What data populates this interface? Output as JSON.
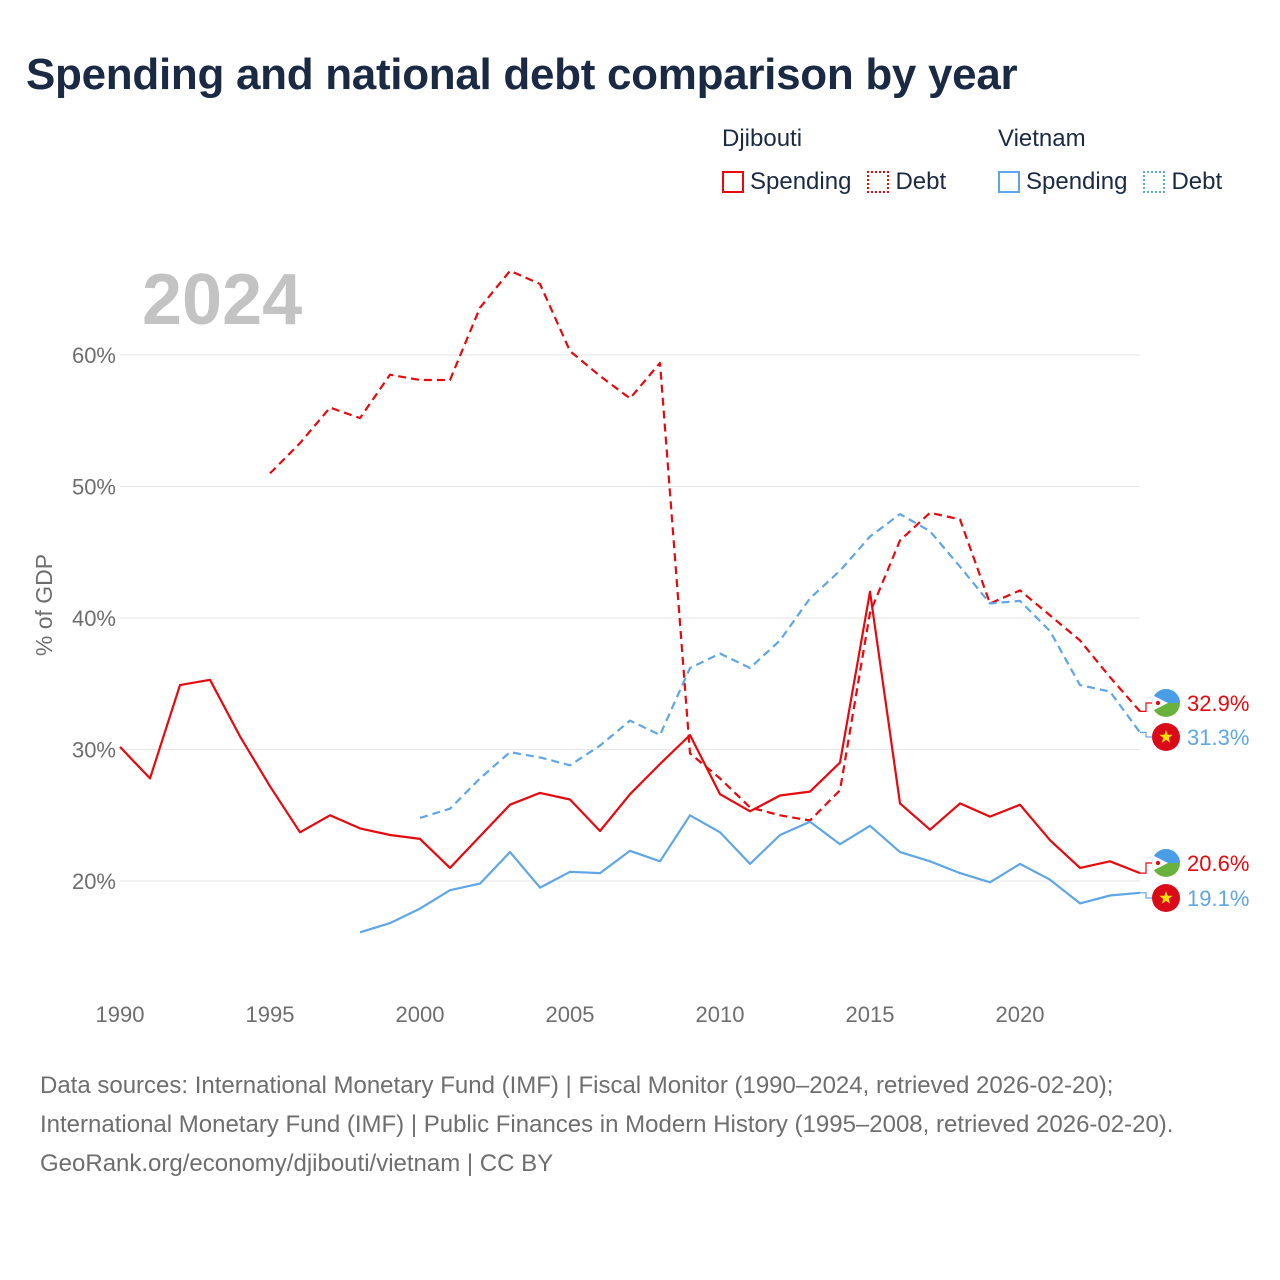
{
  "title": "Spending and national debt comparison by year",
  "legend": {
    "groups": [
      {
        "name": "Djibouti",
        "items": [
          {
            "label": "Spending"
          },
          {
            "label": "Debt"
          }
        ]
      },
      {
        "name": "Vietnam",
        "items": [
          {
            "label": "Spending"
          },
          {
            "label": "Debt"
          }
        ]
      }
    ]
  },
  "colors": {
    "djibouti": "#e8080d",
    "vietnam": "#5fa6e6",
    "grid": "#e6e6e6",
    "axis_text": "#6e6e6e",
    "year_label": "#c3c3c3"
  },
  "footer": {
    "sources": "Data sources: International Monetary Fund (IMF) | Fiscal Monitor (1990–2024, retrieved 2026-02-20); International Monetary Fund (IMF) | Public Finances in Modern History (1995–2008, retrieved 2026-02-20).",
    "credit": "GeoRank.org/economy/djibouti/vietnam | CC BY"
  },
  "chart_data": {
    "type": "line",
    "year_label": "2024",
    "ylabel": "% of GDP",
    "xlim": [
      1990,
      2024
    ],
    "ylim": [
      13,
      68
    ],
    "x_ticks": [
      1990,
      1995,
      2000,
      2005,
      2010,
      2015,
      2020
    ],
    "x_tick_labels": [
      "1990",
      "1995",
      "2000",
      "2005",
      "2010",
      "2015",
      "2020"
    ],
    "y_ticks": [
      20,
      30,
      40,
      50,
      60
    ],
    "y_tick_labels": [
      "20%",
      "30%",
      "40%",
      "50%",
      "60%"
    ],
    "grid": true,
    "series": [
      {
        "name": "Djibouti Spending",
        "country": "djibouti",
        "style": "solid",
        "x": [
          1990,
          1991,
          1992,
          1993,
          1994,
          1995,
          1996,
          1997,
          1998,
          1999,
          2000,
          2001,
          2002,
          2003,
          2004,
          2005,
          2006,
          2007,
          2008,
          2009,
          2010,
          2011,
          2012,
          2013,
          2014,
          2015,
          2016,
          2017,
          2018,
          2019,
          2020,
          2021,
          2022,
          2023,
          2024
        ],
        "values": [
          30.2,
          27.8,
          34.9,
          35.3,
          31.0,
          27.2,
          23.7,
          25.0,
          24.0,
          23.5,
          23.2,
          21.0,
          23.4,
          25.8,
          26.7,
          26.2,
          23.8,
          26.6,
          28.9,
          31.1,
          26.6,
          25.3,
          26.5,
          26.8,
          29.0,
          42.0,
          25.9,
          23.9,
          25.9,
          24.9,
          25.8,
          23.1,
          21.0,
          21.5,
          20.6
        ],
        "end_label": "20.6%"
      },
      {
        "name": "Djibouti Debt",
        "country": "djibouti",
        "style": "dashed",
        "x": [
          1995,
          1996,
          1997,
          1998,
          1999,
          2000,
          2001,
          2002,
          2003,
          2004,
          2005,
          2006,
          2007,
          2008,
          2009,
          2010,
          2011,
          2012,
          2013,
          2014,
          2015,
          2016,
          2017,
          2018,
          2019,
          2020,
          2021,
          2022,
          2023,
          2024
        ],
        "values": [
          51.0,
          53.3,
          56.0,
          55.2,
          58.5,
          58.1,
          58.1,
          63.6,
          66.4,
          65.4,
          60.3,
          58.4,
          56.7,
          59.4,
          29.7,
          27.8,
          25.6,
          25.0,
          24.6,
          26.9,
          40.4,
          45.9,
          48.0,
          47.5,
          41.1,
          42.1,
          40.2,
          38.3,
          35.5,
          32.9
        ],
        "end_label": "32.9%"
      },
      {
        "name": "Vietnam Spending",
        "country": "vietnam",
        "style": "solid",
        "x": [
          1998,
          1999,
          2000,
          2001,
          2002,
          2003,
          2004,
          2005,
          2006,
          2007,
          2008,
          2009,
          2010,
          2011,
          2012,
          2013,
          2014,
          2015,
          2016,
          2017,
          2018,
          2019,
          2020,
          2021,
          2022,
          2023,
          2024
        ],
        "values": [
          16.1,
          16.8,
          17.9,
          19.3,
          19.8,
          22.2,
          19.5,
          20.7,
          20.6,
          22.3,
          21.5,
          25.0,
          23.7,
          21.3,
          23.5,
          24.5,
          22.8,
          24.2,
          22.2,
          21.5,
          20.6,
          19.9,
          21.3,
          20.1,
          18.3,
          18.9,
          19.1
        ],
        "end_label": "19.1%"
      },
      {
        "name": "Vietnam Debt",
        "country": "vietnam",
        "style": "dashed",
        "x": [
          2000,
          2001,
          2002,
          2003,
          2004,
          2005,
          2006,
          2007,
          2008,
          2009,
          2010,
          2011,
          2012,
          2013,
          2014,
          2015,
          2016,
          2017,
          2018,
          2019,
          2020,
          2021,
          2022,
          2023,
          2024
        ],
        "values": [
          24.8,
          25.5,
          27.8,
          29.8,
          29.4,
          28.8,
          30.3,
          32.2,
          31.1,
          36.2,
          37.3,
          36.2,
          38.3,
          41.5,
          43.6,
          46.2,
          47.9,
          46.6,
          43.9,
          41.1,
          41.3,
          39.0,
          34.9,
          34.4,
          31.3
        ],
        "end_label": "31.3%"
      }
    ]
  }
}
